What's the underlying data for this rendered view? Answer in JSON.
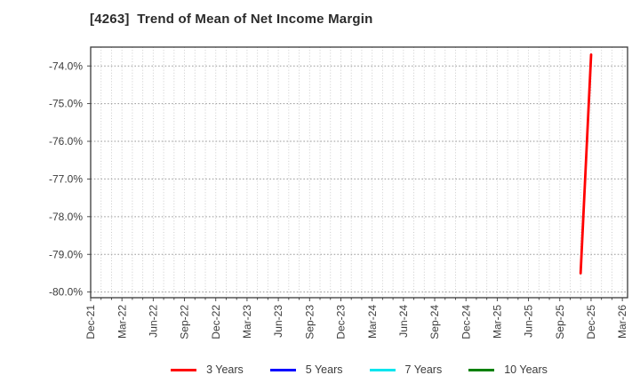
{
  "title": "[4263]  Trend of Mean of Net Income Margin",
  "chart_data": {
    "type": "line",
    "title": "[4263]  Trend of Mean of Net Income Margin",
    "xlabel": "",
    "ylabel": "",
    "x_ticks": [
      "Dec-21",
      "Mar-22",
      "Jun-22",
      "Sep-22",
      "Dec-22",
      "Mar-23",
      "Jun-23",
      "Sep-23",
      "Dec-23",
      "Mar-24",
      "Jun-24",
      "Sep-24",
      "Dec-24",
      "Mar-25",
      "Jun-25",
      "Sep-25",
      "Dec-25",
      "Mar-26"
    ],
    "y_ticks": [
      "-74.0%",
      "-75.0%",
      "-76.0%",
      "-77.0%",
      "-78.0%",
      "-79.0%",
      "-80.0%"
    ],
    "ylim": [
      -80.15,
      -73.5
    ],
    "grid": "dotted",
    "legend_position": "bottom",
    "series": [
      {
        "name": "3 Years",
        "color": "#ff0000",
        "points": [
          {
            "x": "Nov-25",
            "y": -79.5
          },
          {
            "x": "Dec-25",
            "y": -73.7
          }
        ]
      },
      {
        "name": "5 Years",
        "color": "#0000ff",
        "points": []
      },
      {
        "name": "7 Years",
        "color": "#00e5ee",
        "points": []
      },
      {
        "name": "10 Years",
        "color": "#008000",
        "points": []
      }
    ]
  },
  "colors": {
    "grid_horizontal": "#9a9a9a",
    "grid_vertical": "#c6c6c6",
    "axis_border": "#3a3a3a",
    "tick_text": "#3c3c3c",
    "title_text": "#2b2b2b"
  }
}
